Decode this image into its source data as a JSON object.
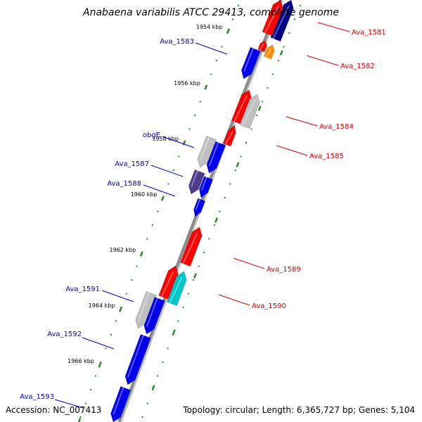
{
  "title": "Anabaena variabilis ATCC 29413, complete genome",
  "footer": {
    "accession": "Accession: NC_007413",
    "summary": "Topology: circular; Length: 6,365,727 bp; Genes: 5,104"
  },
  "colors": {
    "backbone": "#8a8a8a",
    "tick": "#2a8a2a",
    "label_left": "#0000cc",
    "label_right": "#dd0000"
  },
  "ticks": [
    {
      "label": "1954 kbp"
    },
    {
      "label": "1956 kbp"
    },
    {
      "label": "1958 kbp"
    },
    {
      "label": "1960 kbp"
    },
    {
      "label": "1962 kbp"
    },
    {
      "label": "1964 kbp"
    },
    {
      "label": "1966 kbp"
    },
    {
      "label": ""
    }
  ],
  "genes": [
    {
      "name": "Ava_1581",
      "strand": "+",
      "color": "#000088",
      "label": "Ava_1581"
    },
    {
      "name": "",
      "strand": "+",
      "color": "#ff0000",
      "label": ""
    },
    {
      "name": "",
      "strand": "+",
      "color": "#ff0000",
      "label": ""
    },
    {
      "name": "Ava_1582",
      "strand": "+",
      "color": "#ff8c00",
      "label": "Ava_1582"
    },
    {
      "name": "Ava_1583",
      "strand": "-",
      "color": "#0000ee",
      "label": "Ava_1583"
    },
    {
      "name": "",
      "strand": "+",
      "color": "#ff0000",
      "label": ""
    },
    {
      "name": "Ava_1584",
      "strand": "+",
      "color": "#c0c0c0",
      "label": "Ava_1584"
    },
    {
      "name": "Ava_1585",
      "strand": "+",
      "color": "#ff0000",
      "label": "Ava_1585"
    },
    {
      "name": "obgE",
      "strand": "-",
      "color": "#c0c0c0",
      "label": "obgE"
    },
    {
      "name": "",
      "strand": "-",
      "color": "#0000ee",
      "label": ""
    },
    {
      "name": "Ava_1587",
      "strand": "-",
      "color": "#4b3c8c",
      "label": "Ava_1587"
    },
    {
      "name": "Ava_1588",
      "strand": "-",
      "color": "#0000ee",
      "label": "Ava_1588"
    },
    {
      "name": "",
      "strand": "-",
      "color": "#0000ee",
      "label": ""
    },
    {
      "name": "",
      "strand": "+",
      "color": "#ff0000",
      "label": ""
    },
    {
      "name": "Ava_1589",
      "strand": "+",
      "color": "#ff0000",
      "label": "Ava_1589"
    },
    {
      "name": "Ava_1590",
      "strand": "+",
      "color": "#00c8c8",
      "label": "Ava_1590"
    },
    {
      "name": "Ava_1591",
      "strand": "-",
      "color": "#c0c0c0",
      "label": "Ava_1591"
    },
    {
      "name": "",
      "strand": "-",
      "color": "#0000ee",
      "label": ""
    },
    {
      "name": "Ava_1592",
      "strand": "-",
      "color": "#0000ee",
      "label": "Ava_1592"
    },
    {
      "name": "Ava_1593",
      "strand": "-",
      "color": "#0000ee",
      "label": "Ava_1593"
    }
  ]
}
